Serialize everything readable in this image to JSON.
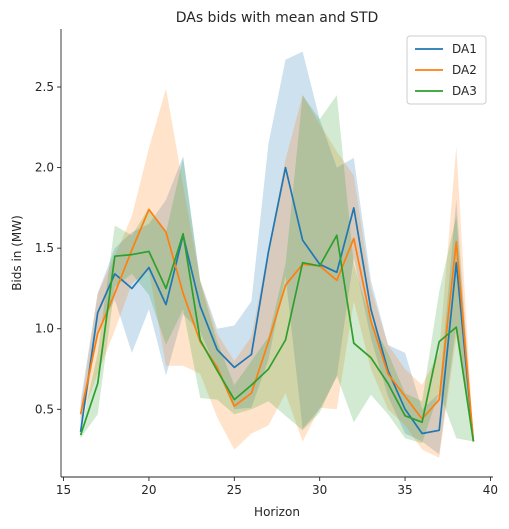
{
  "chart_data": {
    "type": "line",
    "title": "DAs bids with mean and STD",
    "xlabel": "Horizon",
    "ylabel": "Bids in (MW)",
    "xlim": [
      14.85,
      40.15
    ],
    "ylim": [
      0.08,
      2.86
    ],
    "xticks": [
      15,
      20,
      25,
      30,
      35,
      40
    ],
    "yticks": [
      0.5,
      1.0,
      1.5,
      2.0,
      2.5
    ],
    "grid": false,
    "legend_position": "top-right",
    "x": [
      16,
      17,
      18,
      19,
      20,
      21,
      22,
      23,
      24,
      25,
      26,
      27,
      28,
      29,
      30,
      31,
      32,
      33,
      34,
      35,
      36,
      37,
      38,
      39
    ],
    "series": [
      {
        "name": "DA1",
        "color": "#1f77b4",
        "values": [
          0.36,
          1.1,
          1.34,
          1.25,
          1.38,
          1.15,
          1.58,
          1.14,
          0.87,
          0.76,
          0.84,
          1.48,
          2.0,
          1.55,
          1.4,
          1.35,
          1.75,
          1.12,
          0.74,
          0.5,
          0.35,
          0.37,
          1.41,
          0.3
        ],
        "upper": [
          0.55,
          1.22,
          1.5,
          1.6,
          1.65,
          1.8,
          2.07,
          1.3,
          1.0,
          1.02,
          1.17,
          2.15,
          2.67,
          2.72,
          2.3,
          2.0,
          2.06,
          1.3,
          0.9,
          0.85,
          0.5,
          0.6,
          1.8,
          0.3
        ],
        "lower": [
          0.35,
          0.98,
          1.18,
          0.85,
          1.12,
          0.71,
          1.09,
          0.98,
          0.74,
          0.5,
          0.51,
          0.81,
          1.33,
          0.38,
          0.5,
          0.7,
          1.44,
          0.94,
          0.58,
          0.35,
          0.3,
          0.22,
          1.02,
          0.3
        ]
      },
      {
        "name": "DA2",
        "color": "#ff7f0e",
        "values": [
          0.47,
          0.97,
          1.22,
          1.49,
          1.74,
          1.6,
          1.22,
          0.92,
          0.76,
          0.52,
          0.6,
          0.92,
          1.27,
          1.4,
          1.39,
          1.3,
          1.56,
          1.05,
          0.72,
          0.58,
          0.44,
          0.56,
          1.54,
          0.3
        ],
        "upper": [
          0.5,
          1.22,
          1.45,
          1.7,
          2.12,
          2.49,
          1.89,
          1.3,
          0.97,
          0.8,
          0.95,
          1.5,
          2.05,
          2.45,
          2.27,
          2.1,
          1.95,
          1.25,
          0.9,
          0.75,
          0.65,
          0.85,
          2.13,
          0.3
        ],
        "lower": [
          0.44,
          0.72,
          0.99,
          1.28,
          1.36,
          0.77,
          0.77,
          0.72,
          0.45,
          0.25,
          0.35,
          0.4,
          0.6,
          0.3,
          0.51,
          0.5,
          1.17,
          0.75,
          0.5,
          0.4,
          0.25,
          0.2,
          0.95,
          0.3
        ]
      },
      {
        "name": "DA3",
        "color": "#2ca02c",
        "values": [
          0.34,
          0.66,
          1.45,
          1.46,
          1.48,
          1.25,
          1.59,
          0.93,
          0.74,
          0.56,
          0.65,
          0.75,
          0.93,
          1.41,
          1.39,
          1.58,
          0.91,
          0.82,
          0.66,
          0.46,
          0.42,
          0.92,
          1.01,
          0.3
        ],
        "upper": [
          0.36,
          0.85,
          1.64,
          1.58,
          1.75,
          1.6,
          2.06,
          1.29,
          0.92,
          0.65,
          0.8,
          0.95,
          1.4,
          2.45,
          2.3,
          2.45,
          1.4,
          1.05,
          0.85,
          0.6,
          0.55,
          1.23,
          1.7,
          0.3
        ],
        "lower": [
          0.32,
          0.47,
          1.26,
          1.34,
          1.21,
          0.9,
          1.12,
          0.57,
          0.56,
          0.47,
          0.5,
          0.55,
          0.46,
          0.37,
          0.48,
          0.71,
          0.42,
          0.59,
          0.47,
          0.32,
          0.29,
          0.61,
          0.32,
          0.3
        ]
      }
    ]
  }
}
